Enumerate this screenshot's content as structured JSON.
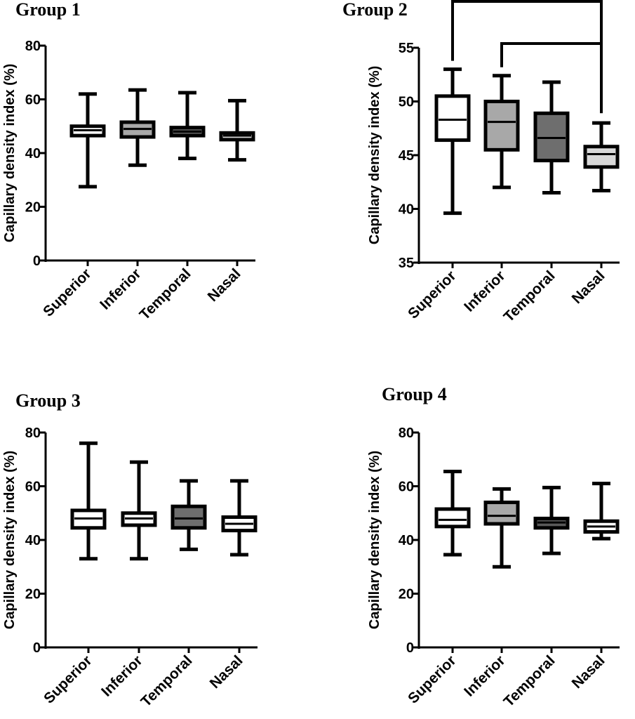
{
  "chart_data": [
    {
      "type": "box",
      "title": "Group 1",
      "ylabel": "Capillary density index (%)",
      "categories": [
        "Superior",
        "Inferior",
        "Temporal",
        "Nasal"
      ],
      "ylim": [
        0,
        80
      ],
      "yticks": [
        0,
        20,
        40,
        60,
        80
      ],
      "boxes": [
        {
          "min": 27.5,
          "q1": 46.5,
          "median": 48.5,
          "q3": 50,
          "max": 62,
          "color": "#ffffff"
        },
        {
          "min": 35.5,
          "q1": 46,
          "median": 49,
          "q3": 51.5,
          "max": 63.5,
          "color": "#a8a8a8"
        },
        {
          "min": 38,
          "q1": 46.5,
          "median": 48,
          "q3": 49.5,
          "max": 62.5,
          "color": "#5a5a5a"
        },
        {
          "min": 37.5,
          "q1": 45,
          "median": 46.5,
          "q3": 47.5,
          "max": 59.5,
          "color": "#d9d9d9"
        }
      ],
      "significance": []
    },
    {
      "type": "box",
      "title": "Group 2",
      "ylabel": "Capillary density index (%)",
      "categories": [
        "Superior",
        "Inferior",
        "Temporal",
        "Nasal"
      ],
      "ylim": [
        35,
        55
      ],
      "yticks": [
        35,
        40,
        45,
        50,
        55
      ],
      "boxes": [
        {
          "min": 39.6,
          "q1": 46.4,
          "median": 48.3,
          "q3": 50.5,
          "max": 53,
          "color": "#ffffff"
        },
        {
          "min": 42,
          "q1": 45.5,
          "median": 48.1,
          "q3": 50,
          "max": 52.4,
          "color": "#a8a8a8"
        },
        {
          "min": 41.5,
          "q1": 44.5,
          "median": 46.6,
          "q3": 48.9,
          "max": 51.8,
          "color": "#6e6e6e"
        },
        {
          "min": 41.7,
          "q1": 43.9,
          "median": 45.1,
          "q3": 45.8,
          "max": 48,
          "color": "#d9d9d9"
        }
      ],
      "significance": [
        [
          0,
          3
        ],
        [
          1,
          3
        ]
      ]
    },
    {
      "type": "box",
      "title": "Group 3",
      "ylabel": "Capillary density index (%)",
      "categories": [
        "Superior",
        "Inferior",
        "Temporal",
        "Nasal"
      ],
      "ylim": [
        0,
        80
      ],
      "yticks": [
        0,
        20,
        40,
        60,
        80
      ],
      "boxes": [
        {
          "min": 33,
          "q1": 44.5,
          "median": 48,
          "q3": 51,
          "max": 76,
          "color": "#ffffff"
        },
        {
          "min": 33,
          "q1": 45.5,
          "median": 48,
          "q3": 50,
          "max": 69,
          "color": "#ffffff"
        },
        {
          "min": 36.5,
          "q1": 44.5,
          "median": 48,
          "q3": 52.5,
          "max": 62,
          "color": "#6e6e6e"
        },
        {
          "min": 34.5,
          "q1": 43.5,
          "median": 46,
          "q3": 48.5,
          "max": 62,
          "color": "#ffffff"
        }
      ],
      "significance": []
    },
    {
      "type": "box",
      "title": "Group 4",
      "ylabel": "Capillary density index (%)",
      "categories": [
        "Superior",
        "Inferior",
        "Temporal",
        "Nasal"
      ],
      "ylim": [
        0,
        80
      ],
      "yticks": [
        0,
        20,
        40,
        60,
        80
      ],
      "boxes": [
        {
          "min": 34.5,
          "q1": 45,
          "median": 47.5,
          "q3": 51.5,
          "max": 65.5,
          "color": "#ffffff"
        },
        {
          "min": 30,
          "q1": 46,
          "median": 49,
          "q3": 54,
          "max": 59,
          "color": "#a8a8a8"
        },
        {
          "min": 35,
          "q1": 44.5,
          "median": 46.5,
          "q3": 48,
          "max": 59.5,
          "color": "#5a5a5a"
        },
        {
          "min": 40.5,
          "q1": 43,
          "median": 45,
          "q3": 47,
          "max": 61,
          "color": "#ffffff"
        }
      ],
      "significance": []
    }
  ]
}
